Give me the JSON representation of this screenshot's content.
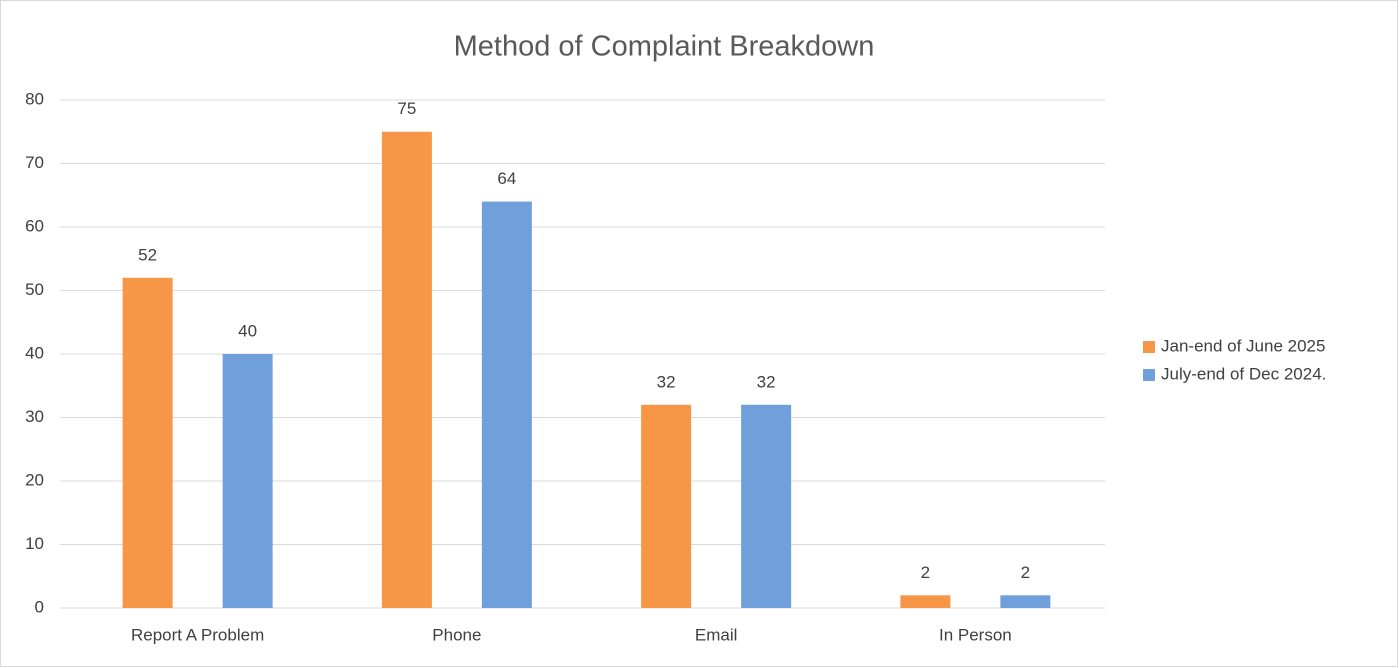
{
  "chart_data": {
    "type": "bar",
    "title": "Method of Complaint Breakdown",
    "categories": [
      "Report A Problem",
      "Phone",
      "Email",
      "In Person"
    ],
    "series": [
      {
        "name": "Jan-end of June 2025",
        "color": "#f79646",
        "values": [
          52,
          75,
          32,
          2
        ]
      },
      {
        "name": "July-end of Dec 2024.",
        "color": "#6fa0dc",
        "values": [
          40,
          64,
          32,
          2
        ]
      }
    ],
    "ylim": [
      0,
      80
    ],
    "yticks": [
      0,
      10,
      20,
      30,
      40,
      50,
      60,
      70,
      80
    ],
    "grid": true,
    "legend": "right"
  }
}
